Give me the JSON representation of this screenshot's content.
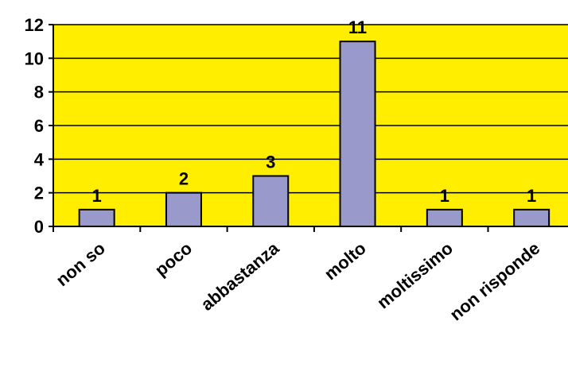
{
  "chart_data": {
    "type": "bar",
    "categories": [
      "non so",
      "poco",
      "abbastanza",
      "molto",
      "moltissimo",
      "non risponde"
    ],
    "values": [
      1,
      2,
      3,
      11,
      1,
      1
    ],
    "data_labels": [
      "1",
      "2",
      "3",
      "11",
      "1",
      "1"
    ],
    "title": "",
    "xlabel": "",
    "ylabel": "",
    "ylim": [
      0,
      12
    ],
    "yticks": [
      "0",
      "2",
      "4",
      "6",
      "8",
      "10",
      "12"
    ],
    "grid": true,
    "legend": "none",
    "colors": {
      "plot_background": "#FFEE00",
      "bar_fill": "#9999CC",
      "bar_stroke": "#000000",
      "gridline": "#000000"
    }
  }
}
